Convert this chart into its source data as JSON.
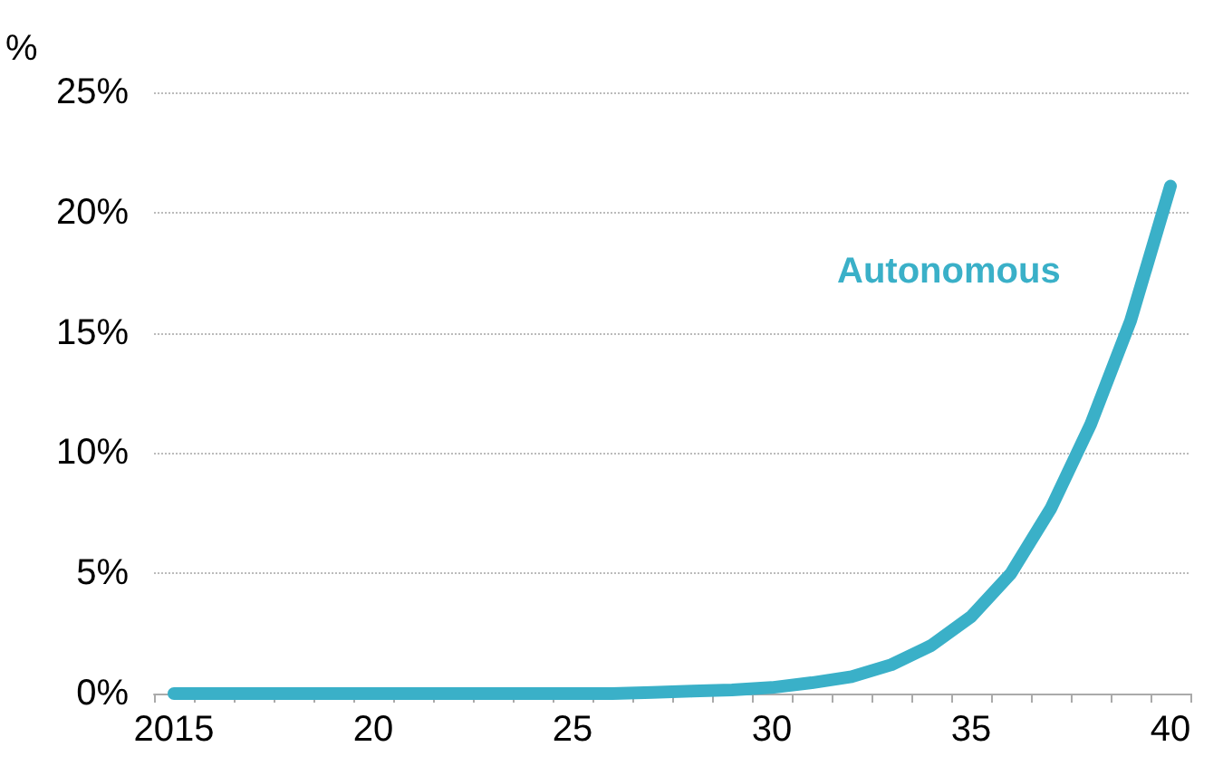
{
  "chart_data": {
    "type": "line",
    "ylabel": "%",
    "categories": [
      "2015",
      null,
      null,
      null,
      null,
      "20",
      null,
      null,
      null,
      null,
      "25",
      null,
      null,
      null,
      null,
      "30",
      null,
      null,
      null,
      null,
      "35",
      null,
      null,
      null,
      null,
      "40"
    ],
    "series": [
      {
        "name": "Autonomous",
        "color": "#3ab0c8",
        "values": [
          0,
          0,
          0,
          0,
          0,
          0,
          0,
          0,
          0,
          0,
          0,
          0,
          0.05,
          0.1,
          0.15,
          0.25,
          0.45,
          0.7,
          1.2,
          2.0,
          3.2,
          5.0,
          7.7,
          11.2,
          15.5,
          21.1
        ]
      }
    ],
    "ylim": [
      0,
      25
    ],
    "yticks": [
      {
        "value": 0,
        "label": "0%"
      },
      {
        "value": 5,
        "label": "5%"
      },
      {
        "value": 10,
        "label": "10%"
      },
      {
        "value": 15,
        "label": "15%"
      },
      {
        "value": 20,
        "label": "20%"
      },
      {
        "value": 25,
        "label": "25%"
      }
    ],
    "grid": "y",
    "legend": false,
    "line_style": "solid"
  }
}
